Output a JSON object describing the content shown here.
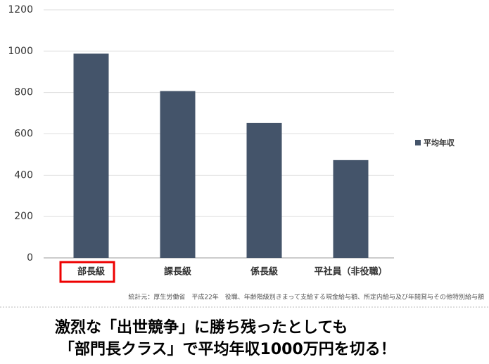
{
  "chart_data": {
    "type": "bar",
    "categories": [
      "部長級",
      "課長級",
      "係長級",
      "平社員（非役職）"
    ],
    "series": [
      {
        "name": "平均年収",
        "color": "#44546a",
        "values": [
          988,
          807,
          653,
          473
        ]
      }
    ],
    "ylim": [
      0,
      1200
    ],
    "yticks": [
      0,
      200,
      400,
      600,
      800,
      1000,
      1200
    ],
    "grid": true,
    "legend": "right",
    "note": "統計元：厚生労働省　平成22年　役職、年齢階級別きまって支給する現金給与額、所定内給与及び年間賞与その他特別給与額"
  },
  "headline": [
    "激烈な「出世競争」に勝ち残ったとしても",
    "「部門長クラス」で平均年収1000万円を切る！"
  ]
}
